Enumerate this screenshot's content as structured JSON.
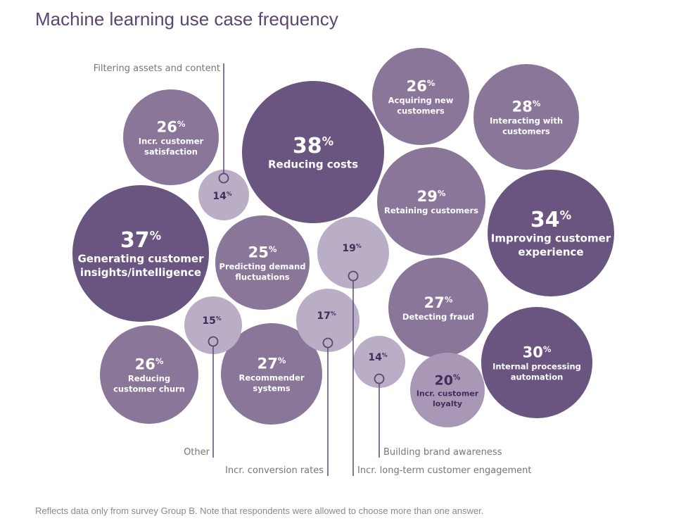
{
  "chart_data": {
    "type": "bubble",
    "title": "Machine learning use case frequency",
    "note": "Reflects data only from survey Group B. Note that respondents were allowed to choose more than one answer.",
    "unit": "%",
    "colors": {
      "dark": "#6a5480",
      "mid": "#8a7698",
      "light_mid": "#a898b5",
      "light": "#b9aec5",
      "text_light": "#ffffff",
      "text_dark": "#3f2d5c",
      "leader": "#5b4672"
    },
    "bubbles": [
      {
        "label": "Reducing costs",
        "value": 38,
        "shade": "dark"
      },
      {
        "label": "Generating customer insights/intelligence",
        "value": 37,
        "shade": "dark"
      },
      {
        "label": "Improving customer experience",
        "value": 34,
        "shade": "dark"
      },
      {
        "label": "Internal processing automation",
        "value": 30,
        "shade": "dark"
      },
      {
        "label": "Retaining customers",
        "value": 29,
        "shade": "mid"
      },
      {
        "label": "Interacting with customers",
        "value": 28,
        "shade": "mid"
      },
      {
        "label": "Detecting fraud",
        "value": 27,
        "shade": "mid"
      },
      {
        "label": "Recommender systems",
        "value": 27,
        "shade": "mid"
      },
      {
        "label": "Acquiring new customers",
        "value": 26,
        "shade": "mid"
      },
      {
        "label": "Incr. customer satisfaction",
        "value": 26,
        "shade": "mid"
      },
      {
        "label": "Reducing customer churn",
        "value": 26,
        "shade": "mid"
      },
      {
        "label": "Predicting demand fluctuations",
        "value": 25,
        "shade": "mid"
      },
      {
        "label": "Incr. customer loyalty",
        "value": 20,
        "shade": "light_mid"
      },
      {
        "label": "Incr. long-term customer engagement",
        "value": 19,
        "shade": "light",
        "external": true
      },
      {
        "label": "Incr. conversion rates",
        "value": 17,
        "shade": "light",
        "external": true
      },
      {
        "label": "Other",
        "value": 15,
        "shade": "light",
        "external": true
      },
      {
        "label": "Filtering assets and content",
        "value": 14,
        "shade": "light",
        "external": true
      },
      {
        "label": "Building brand awareness",
        "value": 14,
        "shade": "light",
        "external": true
      }
    ]
  }
}
